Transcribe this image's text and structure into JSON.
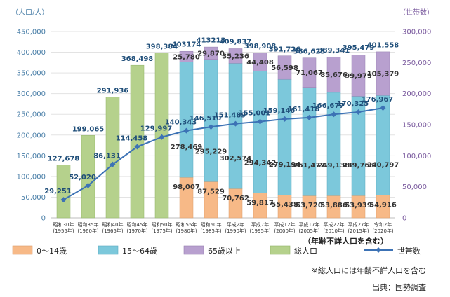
{
  "chart_data": {
    "type": "bar",
    "left_axis_unit": "（人口/人）",
    "right_axis_unit": "（世帯数）",
    "left_ylim": [
      0,
      450000
    ],
    "right_ylim": [
      0,
      300000
    ],
    "left_ticks": [
      "0",
      "50,000",
      "100,000",
      "150,000",
      "200,000",
      "250,000",
      "300,000",
      "350,000",
      "400,000",
      "450,000"
    ],
    "right_ticks": [
      "0",
      "50,000",
      "100,000",
      "150,000",
      "200,000",
      "250,000",
      "300,000"
    ],
    "categories": [
      [
        "昭和30年",
        "(1955年)"
      ],
      [
        "昭和35年",
        "(1960年)"
      ],
      [
        "昭和40年",
        "(1965年)"
      ],
      [
        "昭和45年",
        "(1970年)"
      ],
      [
        "昭和50年",
        "(1975年)"
      ],
      [
        "昭和55年",
        "(1980年)"
      ],
      [
        "昭和60年",
        "(1985年)"
      ],
      [
        "平成2年",
        "(1990年)"
      ],
      [
        "平成7年",
        "(1995年)"
      ],
      [
        "平成12年",
        "(2000年)"
      ],
      [
        "平成17年",
        "(2005年)"
      ],
      [
        "平成22年",
        "(2010年)"
      ],
      [
        "平成27年",
        "(2015年)"
      ],
      [
        "令和2年",
        "(2020年)"
      ]
    ],
    "total_population": [
      127678,
      199065,
      291936,
      368498,
      398384,
      403174,
      413213,
      409837,
      398908,
      391726,
      386623,
      389341,
      395479,
      401558
    ],
    "total_population_labels": [
      "127,678",
      "199,065",
      "291,936",
      "368,498",
      "398,384",
      "403174",
      "413213",
      "409,837",
      "398,908",
      "391,726",
      "386,623",
      "389,341",
      "395,479",
      "401,558"
    ],
    "age_0_14": [
      null,
      null,
      null,
      null,
      null,
      98007,
      87529,
      70762,
      59817,
      55438,
      53720,
      53886,
      53939,
      54916
    ],
    "age_0_14_labels": [
      "",
      "",
      "",
      "",
      "",
      "98,007",
      "87,529",
      "70,762",
      "59,817",
      "55,438",
      "53,720",
      "53,886",
      "53,939",
      "54,916"
    ],
    "age_15_64": [
      null,
      null,
      null,
      null,
      null,
      278469,
      295229,
      302574,
      294342,
      279194,
      261477,
      249138,
      239768,
      240797
    ],
    "age_15_64_labels": [
      "",
      "",
      "",
      "",
      "",
      "278,469",
      "295,229",
      "302,574",
      "294,342",
      "279,194",
      "261,477",
      "249,138",
      "239,768",
      "240,797"
    ],
    "age_65_plus": [
      null,
      null,
      null,
      null,
      null,
      25780,
      29870,
      35236,
      44408,
      56598,
      71067,
      85676,
      99979,
      105379
    ],
    "age_65_plus_labels": [
      "",
      "",
      "",
      "",
      "",
      "25,780",
      "29,870",
      "35,236",
      "44,408",
      "56,598",
      "71,067",
      "85,676",
      "99,979",
      "105,379"
    ],
    "households": [
      29251,
      52020,
      86131,
      114458,
      129997,
      140343,
      146510,
      151489,
      155001,
      159146,
      161418,
      166677,
      170325,
      176967
    ],
    "households_labels": [
      "29,251",
      "52,020",
      "86,131",
      "114,458",
      "129,997",
      "140,343",
      "146,510",
      "151,489",
      "155,001",
      "159,146",
      "161,418",
      "166,677",
      "170,325",
      "176,967"
    ],
    "legend": [
      "0～14歳",
      "15～64歳",
      "65歳以上",
      "総人口",
      "世帯数"
    ],
    "legend_note": "（年齢不詳人口を含む）",
    "colors": {
      "age_0_14": "#f7b987",
      "age_15_64": "#7cc8db",
      "age_65_plus": "#b8a0cf",
      "total": "#b5d18c",
      "households": "#3c72b5",
      "left_axis": "#4a7fa8",
      "right_axis": "#7a5a9e"
    },
    "grid": true,
    "legend_position": "bottom"
  },
  "footnote": "※総人口には年齢不詳人口を含む",
  "source": "出典：国勢調査"
}
